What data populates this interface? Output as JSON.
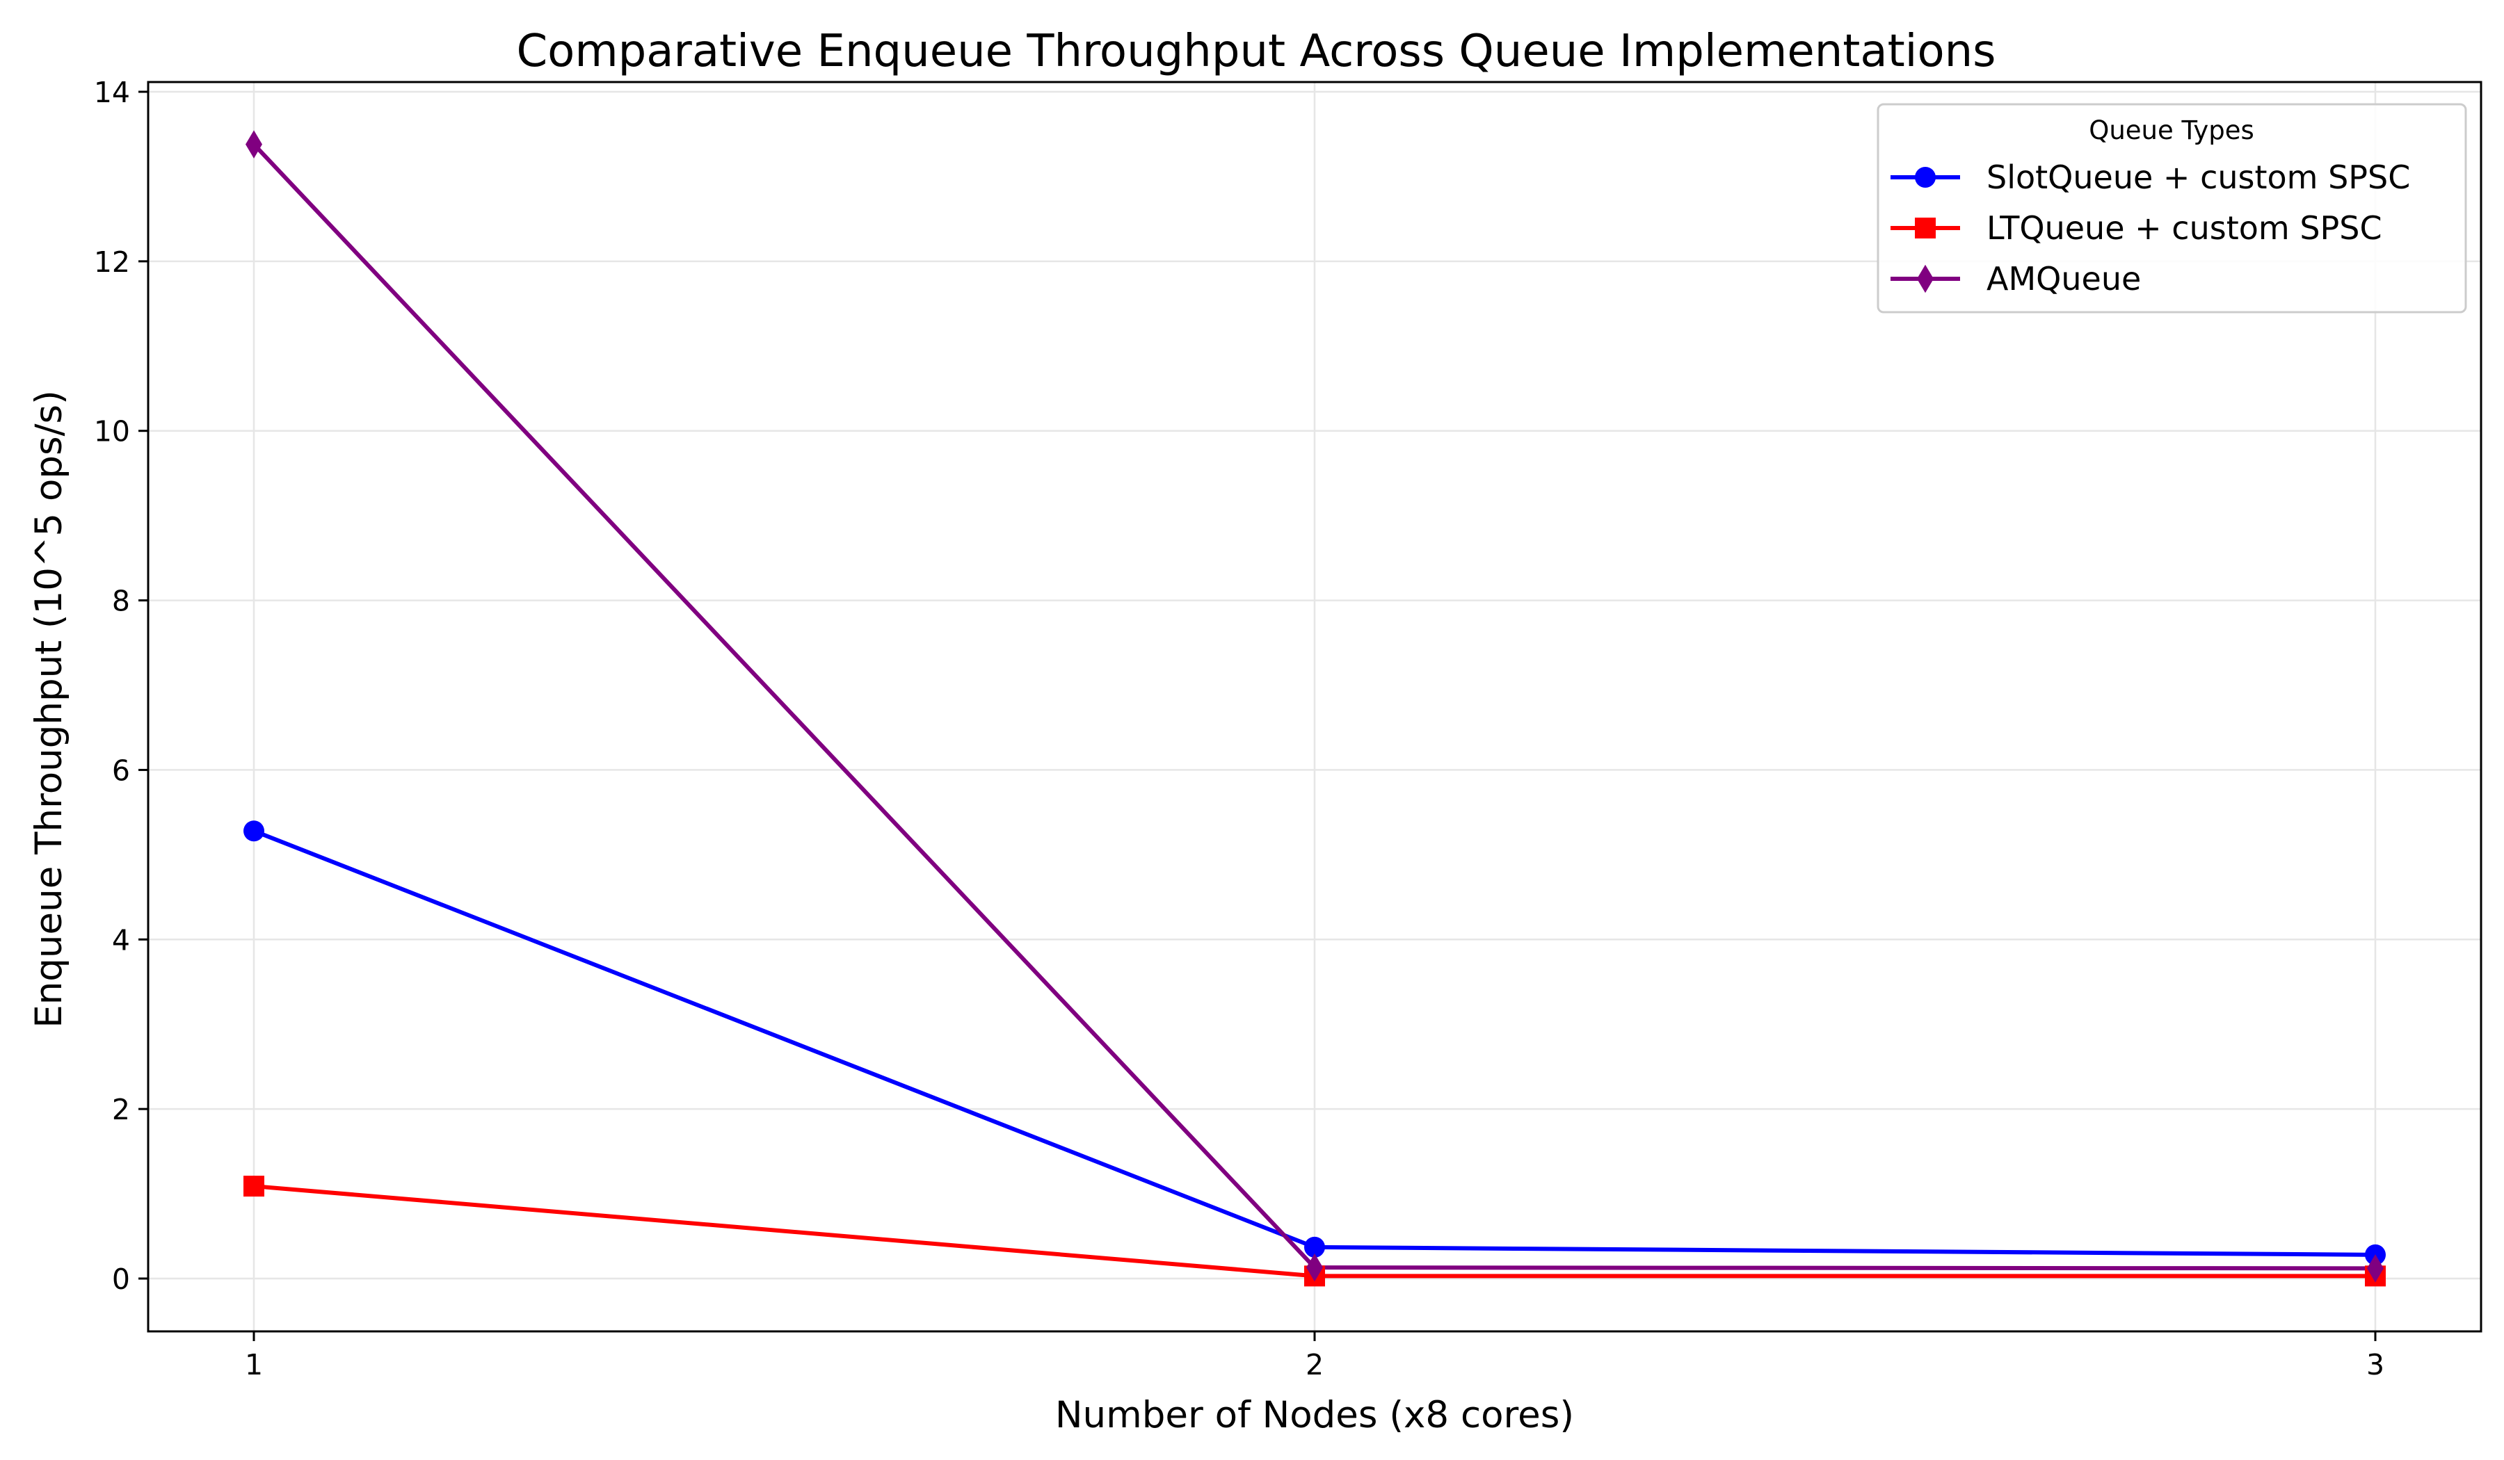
{
  "chart_data": {
    "type": "line",
    "title": "Comparative Enqueue Throughput Across Queue Implementations",
    "xlabel": "Number of Nodes (x8 cores)",
    "ylabel": "Enqueue Throughput (10^5 ops/s)",
    "x": [
      1,
      2,
      3
    ],
    "x_tick_labels": [
      "1",
      "2",
      "3"
    ],
    "y_ticks": [
      0,
      2,
      4,
      6,
      8,
      10,
      12,
      14
    ],
    "y_tick_labels": [
      "0",
      "2",
      "4",
      "6",
      "8",
      "10",
      "12",
      "14"
    ],
    "xlim": [
      0.9,
      3.1
    ],
    "ylim": [
      -0.63,
      14.05
    ],
    "grid": true,
    "legend": {
      "title": "Queue Types",
      "placement": "top-right"
    },
    "series": [
      {
        "name": "SlotQueue + custom SPSC",
        "values": [
          5.28,
          0.37,
          0.28
        ],
        "color": "#0000ff",
        "marker": "circle"
      },
      {
        "name": "LTQueue + custom SPSC",
        "values": [
          1.09,
          0.03,
          0.03
        ],
        "color": "#ff0000",
        "marker": "square"
      },
      {
        "name": "AMQueue",
        "values": [
          13.38,
          0.13,
          0.12
        ],
        "color": "#800080",
        "marker": "diamond"
      }
    ]
  }
}
